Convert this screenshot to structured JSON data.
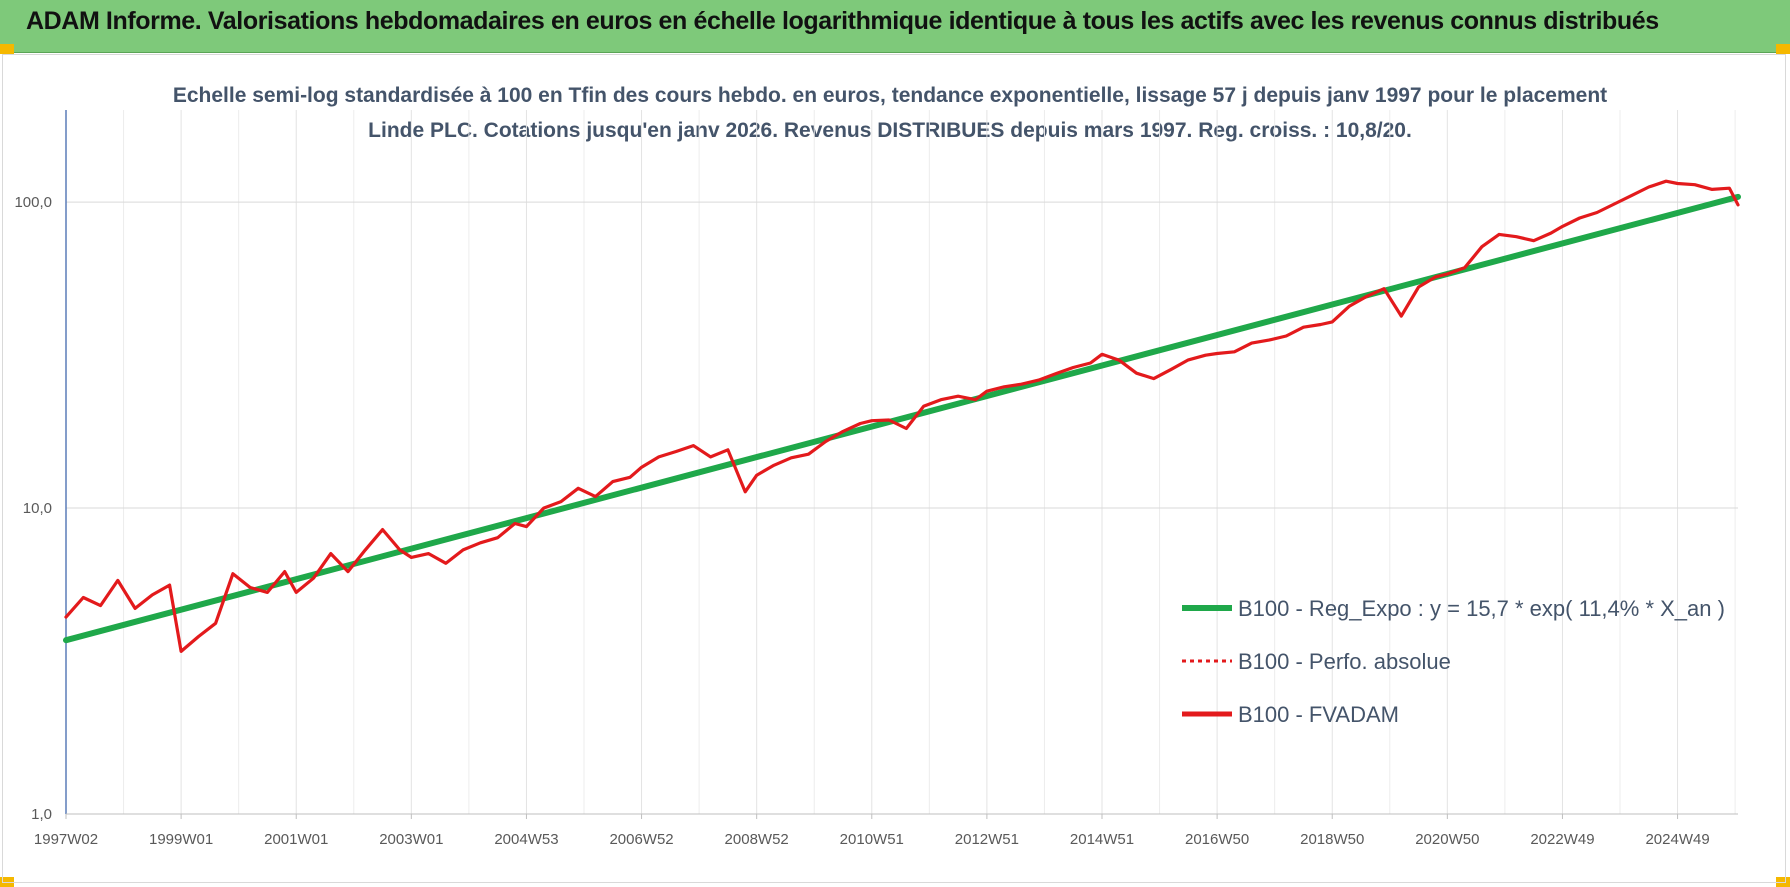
{
  "banner": {
    "title": "ADAM Informe. Valorisations hebdomadaires en euros en échelle logarithmique identique à tous les actifs avec les revenus connus distribués",
    "background": "#7ec97a"
  },
  "chart_data": {
    "type": "line",
    "title": "Echelle semi-log standardisée à 100 en Tfin des cours hebdo. en euros, tendance exponentielle, lissage 57 j depuis janv 1997 pour le placement Linde PLC. Cotations jusqu'en janv 2026. Revenus DISTRIBUES depuis mars 1997. Reg. croiss. : 10,8/20.",
    "y_scale": "log",
    "ylim": [
      1,
      200
    ],
    "y_ticks": [
      "1,0",
      "10,0",
      "100,0"
    ],
    "y_tick_values": [
      1,
      10,
      100
    ],
    "x_range": [
      1997.0,
      2026.05
    ],
    "x_ticks": [
      "1997W02",
      "1999W01",
      "2001W01",
      "2003W01",
      "2004W53",
      "2006W52",
      "2008W52",
      "2010W51",
      "2012W51",
      "2014W51",
      "2016W50",
      "2018W50",
      "2020W50",
      "2022W49",
      "2024W49"
    ],
    "x_tick_values": [
      1997.0,
      1999.0,
      2001.0,
      2003.0,
      2005.0,
      2007.0,
      2009.0,
      2011.0,
      2013.0,
      2015.0,
      2017.0,
      2019.0,
      2021.0,
      2023.0,
      2025.0
    ],
    "grid": "vertical and horizontal",
    "legend_position": "bottom-right",
    "series": [
      {
        "name": "B100 - Reg_Expo : y = 15,7 * exp( 11,4% *  X_an )",
        "color": "#1fa84a",
        "style": "solid-thick",
        "x": [
          1997.0,
          2026.05
        ],
        "y": [
          3.7,
          104
        ]
      },
      {
        "name": "B100 - Perfo. absolue",
        "color": "#e31a1c",
        "style": "dotted",
        "x": [],
        "y": []
      },
      {
        "name": "B100 - FVADAM",
        "color": "#e31a1c",
        "style": "solid",
        "x": [
          1997.0,
          1997.3,
          1997.6,
          1997.9,
          1998.2,
          1998.5,
          1998.8,
          1999.0,
          1999.3,
          1999.6,
          1999.9,
          2000.2,
          2000.5,
          2000.8,
          2001.0,
          2001.3,
          2001.6,
          2001.9,
          2002.2,
          2002.5,
          2002.8,
          2003.0,
          2003.3,
          2003.6,
          2003.9,
          2004.2,
          2004.5,
          2004.8,
          2005.0,
          2005.3,
          2005.6,
          2005.9,
          2006.2,
          2006.5,
          2006.8,
          2007.0,
          2007.3,
          2007.6,
          2007.9,
          2008.2,
          2008.5,
          2008.8,
          2009.0,
          2009.3,
          2009.6,
          2009.9,
          2010.2,
          2010.5,
          2010.8,
          2011.0,
          2011.3,
          2011.6,
          2011.9,
          2012.2,
          2012.5,
          2012.8,
          2013.0,
          2013.3,
          2013.6,
          2013.9,
          2014.2,
          2014.5,
          2014.8,
          2015.0,
          2015.3,
          2015.6,
          2015.9,
          2016.2,
          2016.5,
          2016.8,
          2017.0,
          2017.3,
          2017.6,
          2017.9,
          2018.2,
          2018.5,
          2018.8,
          2019.0,
          2019.3,
          2019.6,
          2019.9,
          2020.2,
          2020.5,
          2020.8,
          2021.0,
          2021.3,
          2021.6,
          2021.9,
          2022.2,
          2022.5,
          2022.8,
          2023.0,
          2023.3,
          2023.6,
          2023.9,
          2024.2,
          2024.5,
          2024.8,
          2025.0,
          2025.3,
          2025.6,
          2025.9,
          2026.05
        ],
        "y": [
          4.4,
          5.1,
          4.8,
          5.8,
          4.7,
          5.2,
          5.6,
          3.4,
          3.8,
          4.2,
          6.1,
          5.5,
          5.3,
          6.2,
          5.3,
          5.9,
          7.1,
          6.2,
          7.3,
          8.5,
          7.3,
          6.9,
          7.1,
          6.6,
          7.3,
          7.7,
          8.0,
          8.9,
          8.7,
          10.0,
          10.5,
          11.6,
          10.9,
          12.2,
          12.6,
          13.6,
          14.7,
          15.3,
          16.0,
          14.7,
          15.5,
          11.3,
          12.8,
          13.8,
          14.6,
          15.0,
          16.5,
          17.8,
          18.9,
          19.3,
          19.4,
          18.2,
          21.5,
          22.6,
          23.2,
          22.6,
          24.1,
          24.9,
          25.4,
          26.2,
          27.5,
          28.8,
          29.8,
          31.8,
          30.4,
          27.6,
          26.5,
          28.4,
          30.5,
          31.6,
          32.0,
          32.4,
          34.6,
          35.4,
          36.5,
          39.0,
          39.8,
          40.6,
          45.7,
          49.2,
          52.1,
          42.4,
          52.8,
          57.0,
          58.2,
          61.0,
          71.5,
          78.4,
          77.1,
          74.8,
          79.2,
          83.3,
          88.7,
          92.5,
          98.6,
          105.0,
          112.0,
          117.0,
          115.0,
          114.0,
          110.0,
          111.0,
          98.0
        ]
      }
    ]
  }
}
